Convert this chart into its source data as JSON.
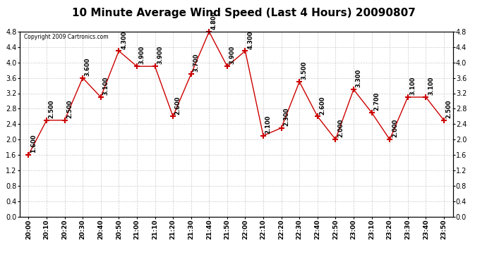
{
  "title": "10 Minute Average Wind Speed (Last 4 Hours) 20090807",
  "copyright": "Copyright 2009 Cartronics.com",
  "x_labels": [
    "20:00",
    "20:10",
    "20:20",
    "20:30",
    "20:40",
    "20:50",
    "21:00",
    "21:10",
    "21:20",
    "21:30",
    "21:40",
    "21:50",
    "22:00",
    "22:10",
    "22:20",
    "22:30",
    "22:40",
    "22:50",
    "23:00",
    "23:10",
    "23:20",
    "23:30",
    "23:40",
    "23:50"
  ],
  "y_values": [
    1.6,
    2.5,
    2.5,
    3.6,
    3.1,
    4.3,
    3.9,
    3.9,
    2.6,
    3.7,
    4.8,
    3.9,
    4.3,
    2.1,
    2.3,
    3.5,
    2.6,
    2.0,
    3.3,
    2.7,
    2.0,
    3.1,
    3.1,
    2.5
  ],
  "line_color": "#cc0000",
  "marker": "+",
  "marker_color": "#cc0000",
  "marker_size": 6,
  "label_fontsize": 6,
  "title_fontsize": 11,
  "ylim": [
    0.0,
    4.8
  ],
  "yticks": [
    0.0,
    0.4,
    0.8,
    1.2,
    1.6,
    2.0,
    2.4,
    2.8,
    3.2,
    3.6,
    4.0,
    4.4,
    4.8
  ],
  "background_color": "#ffffff",
  "grid_color": "#cccccc",
  "annotation_color": "#000000"
}
